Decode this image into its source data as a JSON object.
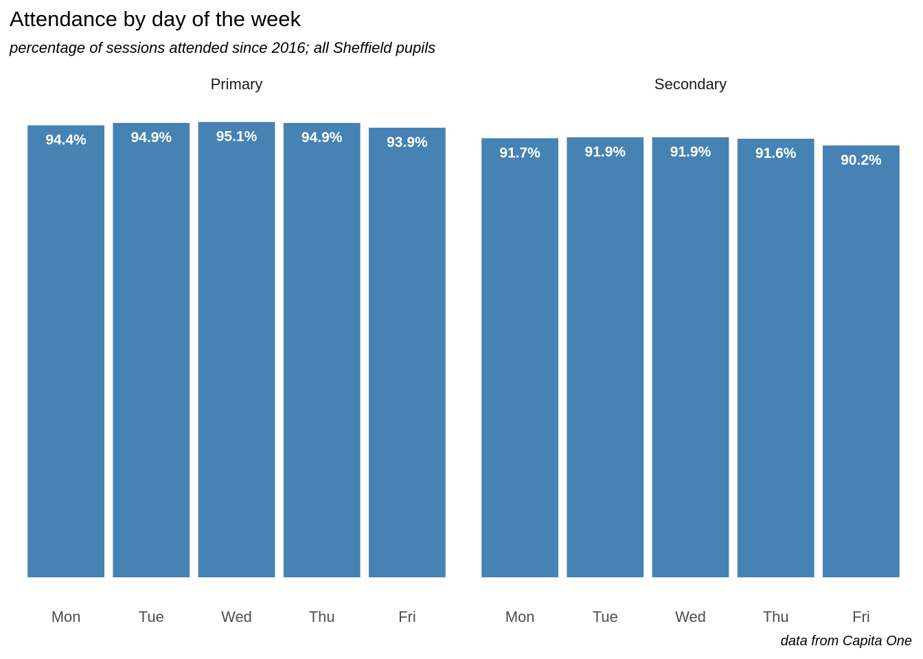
{
  "chart_data": {
    "type": "bar",
    "title": "Attendance by day of the week",
    "subtitle": "percentage of sessions attended since 2016; all Sheffield pupils",
    "caption": "data from Capita One",
    "xlabel": "",
    "ylabel": "",
    "ylim": [
      0,
      100
    ],
    "grid": false,
    "bar_color": "#4682B4",
    "label_color": "#FFFFFF",
    "categories": [
      "Mon",
      "Tue",
      "Wed",
      "Thu",
      "Fri"
    ],
    "facets": [
      {
        "name": "Primary",
        "values": [
          94.4,
          94.9,
          95.1,
          94.9,
          93.9
        ],
        "labels": [
          "94.4%",
          "94.9%",
          "95.1%",
          "94.9%",
          "93.9%"
        ]
      },
      {
        "name": "Secondary",
        "values": [
          91.7,
          91.9,
          91.9,
          91.6,
          90.2
        ],
        "labels": [
          "91.7%",
          "91.9%",
          "91.9%",
          "91.6%",
          "90.2%"
        ]
      }
    ]
  }
}
